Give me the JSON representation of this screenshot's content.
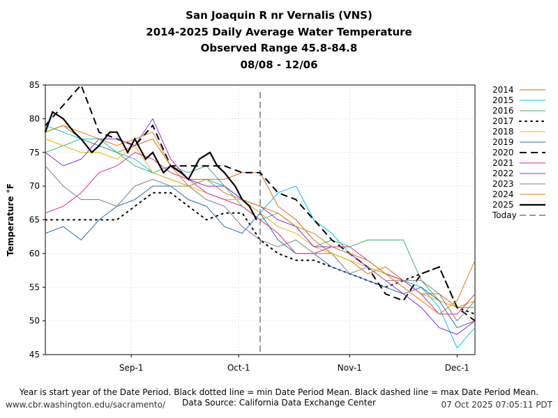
{
  "title_lines": [
    "San Joaquin R nr Vernalis (VNS)",
    "2014-2025 Daily Average Water Temperature",
    "Observed Range 45.8-84.8",
    "08/08 - 12/06"
  ],
  "footer": {
    "note": "Year is start year of the Date Period. Black dotted line = min Date Period Mean. Black dashed line = max Date Period Mean.",
    "source": "Data Source: California Data Exchange Center",
    "url": "www.cbr.washington.edu/sacramento/",
    "timestamp": "07 Oct 2025 07:05:11 PDT"
  },
  "chart_data": {
    "type": "line",
    "ylabel": "Temperature °F",
    "xlabel": "",
    "ylim": [
      45,
      85
    ],
    "yticks": [
      45,
      50,
      55,
      60,
      65,
      70,
      75,
      80,
      85
    ],
    "xlim": [
      "08/08",
      "12/06"
    ],
    "xticks": [
      {
        "label": "Sep-1",
        "day": 24
      },
      {
        "label": "Oct-1",
        "day": 54
      },
      {
        "label": "Nov-1",
        "day": 85
      },
      {
        "label": "Dec-1",
        "day": 115
      }
    ],
    "grid": true,
    "legend_placement": "outside-right",
    "today": {
      "label": "Today",
      "day": 60
    },
    "series": [
      {
        "name": "2014",
        "color": "#d2691e",
        "style": "solid",
        "points": [
          [
            0,
            78
          ],
          [
            5,
            79
          ],
          [
            10,
            77
          ],
          [
            15,
            76
          ],
          [
            20,
            75
          ],
          [
            25,
            76
          ],
          [
            30,
            77
          ],
          [
            35,
            73
          ],
          [
            40,
            71
          ],
          [
            45,
            71
          ],
          [
            50,
            71
          ],
          [
            55,
            72
          ],
          [
            60,
            72
          ],
          [
            65,
            67
          ],
          [
            70,
            65
          ],
          [
            75,
            62
          ],
          [
            80,
            60
          ],
          [
            85,
            59
          ],
          [
            90,
            57
          ],
          [
            95,
            58
          ],
          [
            100,
            56
          ],
          [
            105,
            54
          ],
          [
            110,
            54
          ],
          [
            115,
            52
          ],
          [
            120,
            52
          ]
        ]
      },
      {
        "name": "2015",
        "color": "#00bfef",
        "style": "solid",
        "points": [
          [
            0,
            79
          ],
          [
            5,
            78
          ],
          [
            10,
            77
          ],
          [
            15,
            77
          ],
          [
            20,
            75
          ],
          [
            25,
            74
          ],
          [
            30,
            72
          ],
          [
            35,
            71
          ],
          [
            40,
            70
          ],
          [
            45,
            71
          ],
          [
            50,
            70
          ],
          [
            55,
            68
          ],
          [
            60,
            66
          ],
          [
            65,
            69
          ],
          [
            70,
            70
          ],
          [
            75,
            65
          ],
          [
            80,
            63
          ],
          [
            85,
            60
          ],
          [
            90,
            58
          ],
          [
            95,
            57
          ],
          [
            100,
            56
          ],
          [
            105,
            55
          ],
          [
            110,
            52
          ],
          [
            115,
            46
          ],
          [
            120,
            49
          ]
        ]
      },
      {
        "name": "2016",
        "color": "#3cb371",
        "style": "solid",
        "points": [
          [
            0,
            75
          ],
          [
            5,
            76
          ],
          [
            10,
            77
          ],
          [
            15,
            76
          ],
          [
            20,
            75
          ],
          [
            25,
            73
          ],
          [
            30,
            72
          ],
          [
            35,
            73
          ],
          [
            40,
            72
          ],
          [
            45,
            73
          ],
          [
            50,
            70
          ],
          [
            55,
            67
          ],
          [
            60,
            65
          ],
          [
            65,
            66
          ],
          [
            70,
            64
          ],
          [
            75,
            61
          ],
          [
            80,
            62
          ],
          [
            85,
            61
          ],
          [
            90,
            62
          ],
          [
            95,
            62
          ],
          [
            100,
            62
          ],
          [
            105,
            56
          ],
          [
            110,
            53
          ],
          [
            115,
            52
          ],
          [
            120,
            53
          ]
        ]
      },
      {
        "name": "2017",
        "color": "#000000",
        "style": "dotted",
        "points": [
          [
            0,
            65
          ],
          [
            5,
            65
          ],
          [
            10,
            65
          ],
          [
            15,
            65
          ],
          [
            20,
            65
          ],
          [
            25,
            67
          ],
          [
            30,
            69
          ],
          [
            35,
            69
          ],
          [
            40,
            67
          ],
          [
            45,
            65
          ],
          [
            50,
            66
          ],
          [
            55,
            66
          ],
          [
            60,
            62
          ],
          [
            65,
            60
          ],
          [
            70,
            59
          ],
          [
            75,
            59
          ],
          [
            80,
            58
          ],
          [
            85,
            57
          ],
          [
            90,
            56
          ],
          [
            95,
            55
          ],
          [
            100,
            56
          ],
          [
            105,
            57
          ],
          [
            110,
            58
          ],
          [
            115,
            52
          ],
          [
            120,
            51
          ]
        ]
      },
      {
        "name": "2018",
        "color": "#e5b800",
        "style": "solid",
        "points": [
          [
            0,
            77
          ],
          [
            5,
            76
          ],
          [
            10,
            75
          ],
          [
            15,
            75
          ],
          [
            20,
            74
          ],
          [
            25,
            76
          ],
          [
            30,
            72
          ],
          [
            35,
            71
          ],
          [
            40,
            70
          ],
          [
            45,
            69
          ],
          [
            50,
            68
          ],
          [
            55,
            68
          ],
          [
            60,
            66
          ],
          [
            65,
            64
          ],
          [
            70,
            63
          ],
          [
            75,
            61
          ],
          [
            80,
            60
          ],
          [
            85,
            59
          ],
          [
            90,
            58
          ],
          [
            95,
            57
          ],
          [
            100,
            56
          ],
          [
            105,
            54
          ],
          [
            110,
            53
          ],
          [
            115,
            52
          ],
          [
            120,
            53
          ]
        ]
      },
      {
        "name": "2019",
        "color": "#1f6fb4",
        "style": "solid",
        "points": [
          [
            0,
            63
          ],
          [
            5,
            64
          ],
          [
            10,
            62
          ],
          [
            15,
            65
          ],
          [
            20,
            67
          ],
          [
            25,
            68
          ],
          [
            30,
            70
          ],
          [
            35,
            70
          ],
          [
            40,
            68
          ],
          [
            45,
            67
          ],
          [
            50,
            64
          ],
          [
            55,
            63
          ],
          [
            60,
            66
          ],
          [
            65,
            62
          ],
          [
            70,
            60
          ],
          [
            75,
            60
          ],
          [
            80,
            58
          ],
          [
            85,
            57
          ],
          [
            90,
            56
          ],
          [
            95,
            55
          ],
          [
            100,
            54
          ],
          [
            105,
            55
          ],
          [
            110,
            53
          ],
          [
            115,
            49
          ],
          [
            120,
            50
          ]
        ]
      },
      {
        "name": "2020",
        "color": "#000000",
        "style": "dashed",
        "points": [
          [
            0,
            79
          ],
          [
            5,
            82
          ],
          [
            10,
            85
          ],
          [
            15,
            78
          ],
          [
            20,
            77
          ],
          [
            25,
            76
          ],
          [
            30,
            79
          ],
          [
            35,
            73
          ],
          [
            40,
            73
          ],
          [
            45,
            73
          ],
          [
            50,
            73
          ],
          [
            55,
            72
          ],
          [
            60,
            72
          ],
          [
            65,
            69
          ],
          [
            70,
            68
          ],
          [
            75,
            65
          ],
          [
            80,
            62
          ],
          [
            85,
            60
          ],
          [
            90,
            58
          ],
          [
            95,
            54
          ],
          [
            100,
            53
          ],
          [
            105,
            57
          ],
          [
            110,
            58
          ],
          [
            115,
            52
          ],
          [
            120,
            50
          ]
        ]
      },
      {
        "name": "2021",
        "color": "#e0238c",
        "style": "solid",
        "points": [
          [
            0,
            66
          ],
          [
            5,
            67
          ],
          [
            10,
            69
          ],
          [
            15,
            72
          ],
          [
            20,
            73
          ],
          [
            25,
            75
          ],
          [
            30,
            74
          ],
          [
            35,
            72
          ],
          [
            40,
            71
          ],
          [
            45,
            69
          ],
          [
            50,
            68
          ],
          [
            55,
            67
          ],
          [
            60,
            65
          ],
          [
            65,
            63
          ],
          [
            70,
            60
          ],
          [
            75,
            60
          ],
          [
            80,
            61
          ],
          [
            85,
            61
          ],
          [
            90,
            59
          ],
          [
            95,
            57
          ],
          [
            100,
            56
          ],
          [
            105,
            54
          ],
          [
            110,
            51
          ],
          [
            115,
            51
          ],
          [
            120,
            54
          ]
        ]
      },
      {
        "name": "2022",
        "color": "#8a2be2",
        "style": "solid",
        "points": [
          [
            0,
            75
          ],
          [
            5,
            73
          ],
          [
            10,
            74
          ],
          [
            15,
            77
          ],
          [
            20,
            77
          ],
          [
            25,
            76
          ],
          [
            30,
            80
          ],
          [
            35,
            74
          ],
          [
            40,
            71
          ],
          [
            45,
            70
          ],
          [
            50,
            70
          ],
          [
            55,
            68
          ],
          [
            60,
            67
          ],
          [
            65,
            65
          ],
          [
            70,
            64
          ],
          [
            75,
            61
          ],
          [
            80,
            61
          ],
          [
            85,
            60
          ],
          [
            90,
            58
          ],
          [
            95,
            56
          ],
          [
            100,
            54
          ],
          [
            105,
            52
          ],
          [
            110,
            49
          ],
          [
            115,
            48
          ],
          [
            120,
            50
          ]
        ]
      },
      {
        "name": "2023",
        "color": "#808080",
        "style": "solid",
        "points": [
          [
            0,
            73
          ],
          [
            5,
            70
          ],
          [
            10,
            68
          ],
          [
            15,
            68
          ],
          [
            20,
            67
          ],
          [
            25,
            70
          ],
          [
            30,
            71
          ],
          [
            35,
            70
          ],
          [
            40,
            70
          ],
          [
            45,
            68
          ],
          [
            50,
            67
          ],
          [
            55,
            64
          ],
          [
            60,
            62
          ],
          [
            65,
            61
          ],
          [
            70,
            62
          ],
          [
            75,
            60
          ],
          [
            80,
            60
          ],
          [
            85,
            57
          ],
          [
            90,
            58
          ],
          [
            95,
            56
          ],
          [
            100,
            56
          ],
          [
            105,
            56
          ],
          [
            110,
            54
          ],
          [
            115,
            50
          ],
          [
            120,
            53
          ]
        ]
      },
      {
        "name": "2024",
        "color": "#e07b00",
        "style": "solid",
        "points": [
          [
            0,
            78
          ],
          [
            5,
            79
          ],
          [
            10,
            78
          ],
          [
            15,
            77
          ],
          [
            20,
            76
          ],
          [
            25,
            77
          ],
          [
            30,
            78
          ],
          [
            35,
            73
          ],
          [
            40,
            70
          ],
          [
            45,
            71
          ],
          [
            50,
            69
          ],
          [
            55,
            68
          ],
          [
            60,
            67
          ],
          [
            65,
            66
          ],
          [
            70,
            64
          ],
          [
            75,
            63
          ],
          [
            80,
            61
          ],
          [
            85,
            60
          ],
          [
            90,
            59
          ],
          [
            95,
            57
          ],
          [
            100,
            55
          ],
          [
            105,
            53
          ],
          [
            110,
            51
          ],
          [
            115,
            53
          ],
          [
            120,
            59
          ]
        ]
      },
      {
        "name": "2025",
        "color": "#000000",
        "style": "solid-bold",
        "points": [
          [
            0,
            78
          ],
          [
            2,
            81
          ],
          [
            5,
            80
          ],
          [
            8,
            78
          ],
          [
            10,
            77
          ],
          [
            13,
            75
          ],
          [
            15,
            76
          ],
          [
            18,
            78
          ],
          [
            20,
            78
          ],
          [
            23,
            75
          ],
          [
            25,
            77
          ],
          [
            28,
            74
          ],
          [
            30,
            75
          ],
          [
            33,
            72
          ],
          [
            35,
            73
          ],
          [
            38,
            72
          ],
          [
            40,
            71
          ],
          [
            43,
            74
          ],
          [
            46,
            75
          ],
          [
            48,
            73
          ],
          [
            50,
            72
          ],
          [
            53,
            70
          ],
          [
            55,
            68
          ],
          [
            57,
            67
          ],
          [
            59,
            65
          ]
        ]
      }
    ]
  }
}
